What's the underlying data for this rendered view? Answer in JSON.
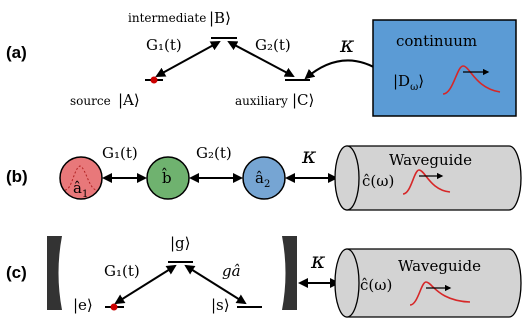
{
  "panel_a": {
    "tag": "(a)",
    "levels": {
      "top_label_word": "intermediate",
      "top_state": "|B⟩",
      "left_label_word": "source",
      "left_state": "|A⟩",
      "right_label_word": "auxiliary",
      "right_state": "|C⟩"
    },
    "couplings": {
      "left": "G₁(t)",
      "right": "G₂(t)",
      "kappa": "κ"
    },
    "bath": {
      "title": "continuum",
      "state": "|D",
      "state_sub": "ω",
      "state_close": "⟩"
    }
  },
  "panel_b": {
    "tag": "(b)",
    "modes": [
      {
        "label": "â",
        "sub": "1",
        "color": "#e8787a"
      },
      {
        "label": "b̂",
        "sub": "",
        "color": "#6fb26f"
      },
      {
        "label": "â",
        "sub": "2",
        "color": "#76a5d3"
      }
    ],
    "couplings": {
      "left": "G₁(t)",
      "right": "G₂(t)",
      "kappa": "κ"
    },
    "waveguide": {
      "title": "Waveguide",
      "field": "ĉ(ω)"
    }
  },
  "panel_c": {
    "tag": "(c)",
    "levels": {
      "top_state": "|g⟩",
      "left_state": "|e⟩",
      "right_state": "|s⟩"
    },
    "couplings": {
      "left": "G₁(t)",
      "right": "gâ",
      "kappa": "κ"
    },
    "waveguide": {
      "title": "Waveguide",
      "field": "ĉ(ω)"
    }
  },
  "colors": {
    "bath_fill": "#5b9bd5",
    "waveguide_fill": "#d3d3d3",
    "pulse": "#d62728",
    "dot": "#cc0000",
    "mirror": "#333333"
  }
}
